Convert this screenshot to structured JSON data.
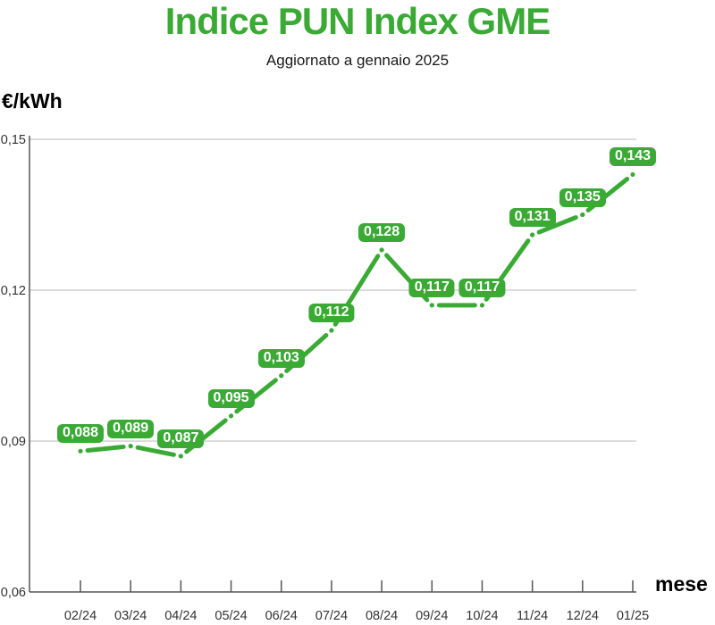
{
  "header": {
    "title": "Indice PUN Index GME",
    "subtitle": "Aggiornato a gennaio 2025"
  },
  "chart_data": {
    "type": "line",
    "title": "Indice PUN Index GME",
    "subtitle": "Aggiornato a gennaio 2025",
    "xlabel": "mese",
    "ylabel": "€/kWh",
    "categories": [
      "02/24",
      "03/24",
      "04/24",
      "05/24",
      "06/24",
      "07/24",
      "08/24",
      "09/24",
      "10/24",
      "11/24",
      "12/24",
      "01/25"
    ],
    "values": [
      0.088,
      0.089,
      0.087,
      0.095,
      0.103,
      0.112,
      0.128,
      0.117,
      0.117,
      0.131,
      0.135,
      0.143
    ],
    "labels": [
      "0,088",
      "0,089",
      "0,087",
      "0,095",
      "0,103",
      "0,112",
      "0,128",
      "0,117",
      "0,117",
      "0,131",
      "0,135",
      "0,143"
    ],
    "y_ticks": [
      {
        "value": 0.15,
        "label": "0,15"
      },
      {
        "value": 0.12,
        "label": "0,12"
      },
      {
        "value": 0.09,
        "label": "0,09"
      },
      {
        "value": 0.06,
        "label": "0,06"
      }
    ],
    "ylim": [
      0.06,
      0.15
    ],
    "grid": true,
    "legend": "none",
    "colors": {
      "line": "#3aaa35",
      "label_badge": "#3aaa35",
      "title": "#3aaa35",
      "grid": "#c8c8c8",
      "axis": "#555555",
      "tick_text": "#333333"
    }
  }
}
